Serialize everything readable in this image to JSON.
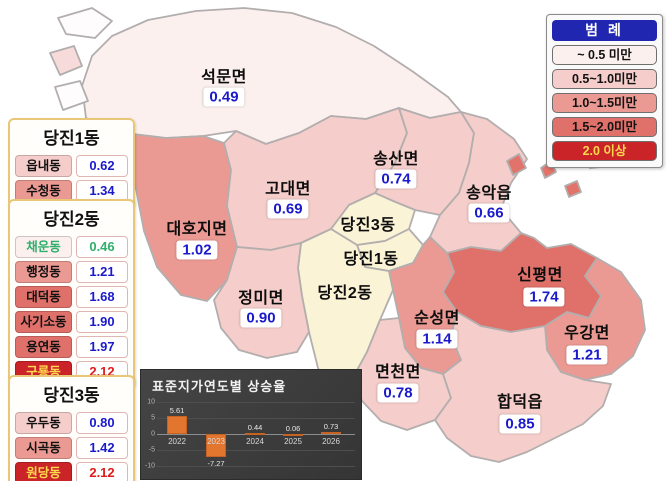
{
  "legend": {
    "title": "범 례",
    "items": [
      {
        "label": "~ 0.5 미만",
        "color": "#fcf0ef",
        "text": "#111111"
      },
      {
        "label": "0.5~1.0미만",
        "color": "#f5cdca",
        "text": "#111111"
      },
      {
        "label": "1.0~1.5미만",
        "color": "#eb9a93",
        "text": "#111111"
      },
      {
        "label": "1.5~2.0미만",
        "color": "#e0716a",
        "text": "#111111"
      },
      {
        "label": "2.0 이상",
        "color": "#ca2428",
        "text": "#ffd94d"
      }
    ]
  },
  "bucket_colors": {
    "b0": "#fcf0ef",
    "b1": "#f5cdca",
    "b2": "#eb9a93",
    "b3": "#e0716a",
    "b4": "#ca2428",
    "dong": "#faf3d6",
    "island_white": "#fefcfc",
    "island_light": "#f7dbda",
    "island_red": "#e2736b"
  },
  "district_boxes": [
    {
      "title": "당진1동",
      "rows": [
        {
          "name": "읍내동",
          "value": "0.62",
          "bucket": "b1",
          "name_color": "#111111",
          "value_color": "#1a1acc"
        },
        {
          "name": "수청동",
          "value": "1.34",
          "bucket": "b2",
          "name_color": "#111111",
          "value_color": "#1a1acc"
        }
      ]
    },
    {
      "title": "당진2동",
      "rows": [
        {
          "name": "채운동",
          "value": "0.46",
          "bucket": "b0",
          "name_color": "#2eaf6b",
          "value_color": "#2eaf6b"
        },
        {
          "name": "행정동",
          "value": "1.21",
          "bucket": "b2",
          "name_color": "#111111",
          "value_color": "#1a1acc"
        },
        {
          "name": "대덕동",
          "value": "1.68",
          "bucket": "b3",
          "name_color": "#111111",
          "value_color": "#1a1acc"
        },
        {
          "name": "사기소동",
          "value": "1.90",
          "bucket": "b3",
          "name_color": "#111111",
          "value_color": "#1a1acc"
        },
        {
          "name": "용연동",
          "value": "1.97",
          "bucket": "b3",
          "name_color": "#111111",
          "value_color": "#1a1acc"
        },
        {
          "name": "구룡동",
          "value": "2.12",
          "bucket": "b4",
          "name_color": "#ffd94d",
          "value_color": "#e01a1a"
        }
      ]
    },
    {
      "title": "당진3동",
      "rows": [
        {
          "name": "우두동",
          "value": "0.80",
          "bucket": "b1",
          "name_color": "#111111",
          "value_color": "#1a1acc"
        },
        {
          "name": "시곡동",
          "value": "1.42",
          "bucket": "b2",
          "name_color": "#111111",
          "value_color": "#1a1acc"
        },
        {
          "name": "원당동",
          "value": "2.12",
          "bucket": "b4",
          "name_color": "#ffd94d",
          "value_color": "#e01a1a"
        }
      ]
    }
  ],
  "map": {
    "regions": [
      {
        "id": "seokmun",
        "name": "석문면",
        "value": "0.49",
        "bucket": "b0"
      },
      {
        "id": "daehoji",
        "name": "대호지면",
        "value": "1.02",
        "bucket": "b2"
      },
      {
        "id": "godae",
        "name": "고대면",
        "value": "0.69",
        "bucket": "b1"
      },
      {
        "id": "songsan",
        "name": "송산면",
        "value": "0.74",
        "bucket": "b1"
      },
      {
        "id": "songak",
        "name": "송악읍",
        "value": "0.66",
        "bucket": "b1"
      },
      {
        "id": "dangjin3",
        "name": "당진3동",
        "value": "",
        "bucket": "dong"
      },
      {
        "id": "dangjin1",
        "name": "당진1동",
        "value": "",
        "bucket": "dong"
      },
      {
        "id": "dangjin2",
        "name": "당진2동",
        "value": "",
        "bucket": "dong"
      },
      {
        "id": "jeongmi",
        "name": "정미면",
        "value": "0.90",
        "bucket": "b1"
      },
      {
        "id": "sinpyeong",
        "name": "신평면",
        "value": "1.74",
        "bucket": "b3"
      },
      {
        "id": "sunseong",
        "name": "순성면",
        "value": "1.14",
        "bucket": "b2"
      },
      {
        "id": "ugang",
        "name": "우강면",
        "value": "1.21",
        "bucket": "b2"
      },
      {
        "id": "myeoncheon",
        "name": "면천면",
        "value": "0.78",
        "bucket": "b1"
      },
      {
        "id": "hapdeok",
        "name": "합덕읍",
        "value": "0.85",
        "bucket": "b1"
      }
    ]
  },
  "chart_data": {
    "type": "bar",
    "title": "표준지가연도별 상승율",
    "categories": [
      "2022",
      "2023",
      "2024",
      "2025",
      "2026"
    ],
    "values": [
      5.61,
      -7.27,
      0.44,
      0.06,
      0.73
    ],
    "labels": [
      "5.61",
      "-7.27",
      "0.44",
      "0.06",
      "0.73"
    ],
    "yticks": [
      10,
      5,
      0,
      -5,
      -10
    ],
    "ylim": [
      -10,
      10
    ],
    "xlabel": "",
    "ylabel": "",
    "grid": true,
    "legend_position": "none",
    "bar_color": "#e2762f",
    "bg_color": "#3d3d3d"
  }
}
